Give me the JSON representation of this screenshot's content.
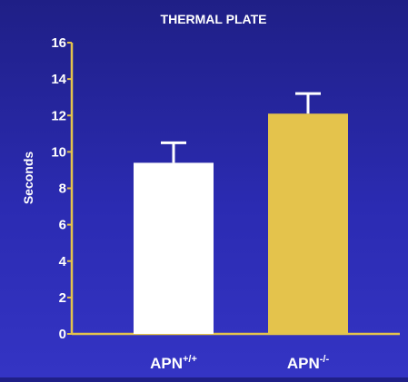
{
  "chart_data": {
    "type": "bar",
    "title": "THERMAL PLATE",
    "ylabel": "Seconds",
    "xlabel": "",
    "ylim": [
      0,
      16
    ],
    "yticks": [
      0,
      2,
      4,
      6,
      8,
      10,
      12,
      14,
      16
    ],
    "grid": false,
    "categories": [
      {
        "base": "APN",
        "sup": "+/+"
      },
      {
        "base": "APN",
        "sup": "-/-"
      }
    ],
    "values": [
      9.4,
      12.1
    ],
    "error_upper": [
      1.1,
      1.1
    ],
    "colors": {
      "bar_1": "#ffffff",
      "bar_2": "#e4c34c",
      "axis": "#e4c34c",
      "text": "#ffffff",
      "background_top": "#1f1f86",
      "background_bottom": "#3434c4"
    }
  }
}
